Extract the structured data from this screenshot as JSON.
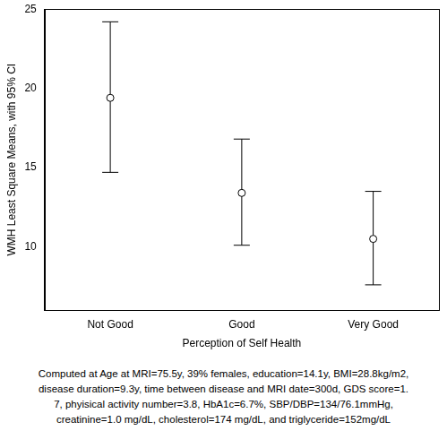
{
  "chart_data": {
    "type": "scatter",
    "categories": [
      "Not Good",
      "Good",
      "Very Good"
    ],
    "values": [
      19.4,
      13.4,
      10.5
    ],
    "ci_lower": [
      14.7,
      10.1,
      7.6
    ],
    "ci_upper": [
      24.2,
      16.8,
      13.5
    ],
    "x_label": "Perception of Self Health",
    "y_label": "WMH Least Square Means, with 95% CI",
    "ylim": [
      6,
      25
    ],
    "yticks": [
      10,
      15,
      20,
      25
    ],
    "grid": false,
    "color": "#000000",
    "marker": "circle",
    "annotation": [
      "Computed at Age at MRI=75.5y, 39% females, education=14.1y, BMI=28.8kg/m2,",
      "disease duration=9.3y, time between disease and MRI date=300d, GDS score=1.",
      "7, phyisical activity number=3.8, HbA1c=6.7%, SBP/DBP=134/76.1mmHg,",
      "creatinine=1.0 mg/dL, cholesterol=174 mg/dL, and triglyceride=152mg/dL"
    ]
  }
}
